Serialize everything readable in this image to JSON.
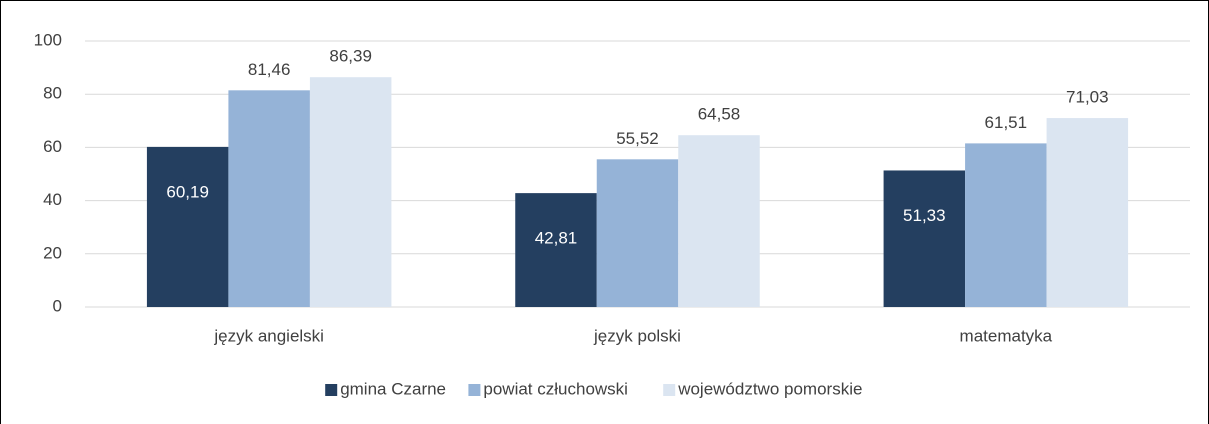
{
  "chart_data": {
    "type": "bar",
    "categories": [
      "język angielski",
      "język polski",
      "matematyka"
    ],
    "series": [
      {
        "name": "gmina Czarne",
        "color": "#243f60",
        "values": [
          60.19,
          42.81,
          51.33
        ],
        "value_labels": [
          "60,19",
          "42,81",
          "51,33"
        ]
      },
      {
        "name": "powiat człuchowski",
        "color": "#95b3d7",
        "values": [
          81.46,
          55.52,
          61.51
        ],
        "value_labels": [
          "81,46",
          "55,52",
          "61,51"
        ]
      },
      {
        "name": "województwo pomorskie",
        "color": "#dbe5f1",
        "values": [
          86.39,
          64.58,
          71.03
        ],
        "value_labels": [
          "86,39",
          "64,58",
          "71,03"
        ]
      }
    ],
    "ylim": [
      0,
      100
    ],
    "yticks": [
      0,
      20,
      40,
      60,
      80,
      100
    ],
    "grid": true,
    "legend": "bottom"
  }
}
